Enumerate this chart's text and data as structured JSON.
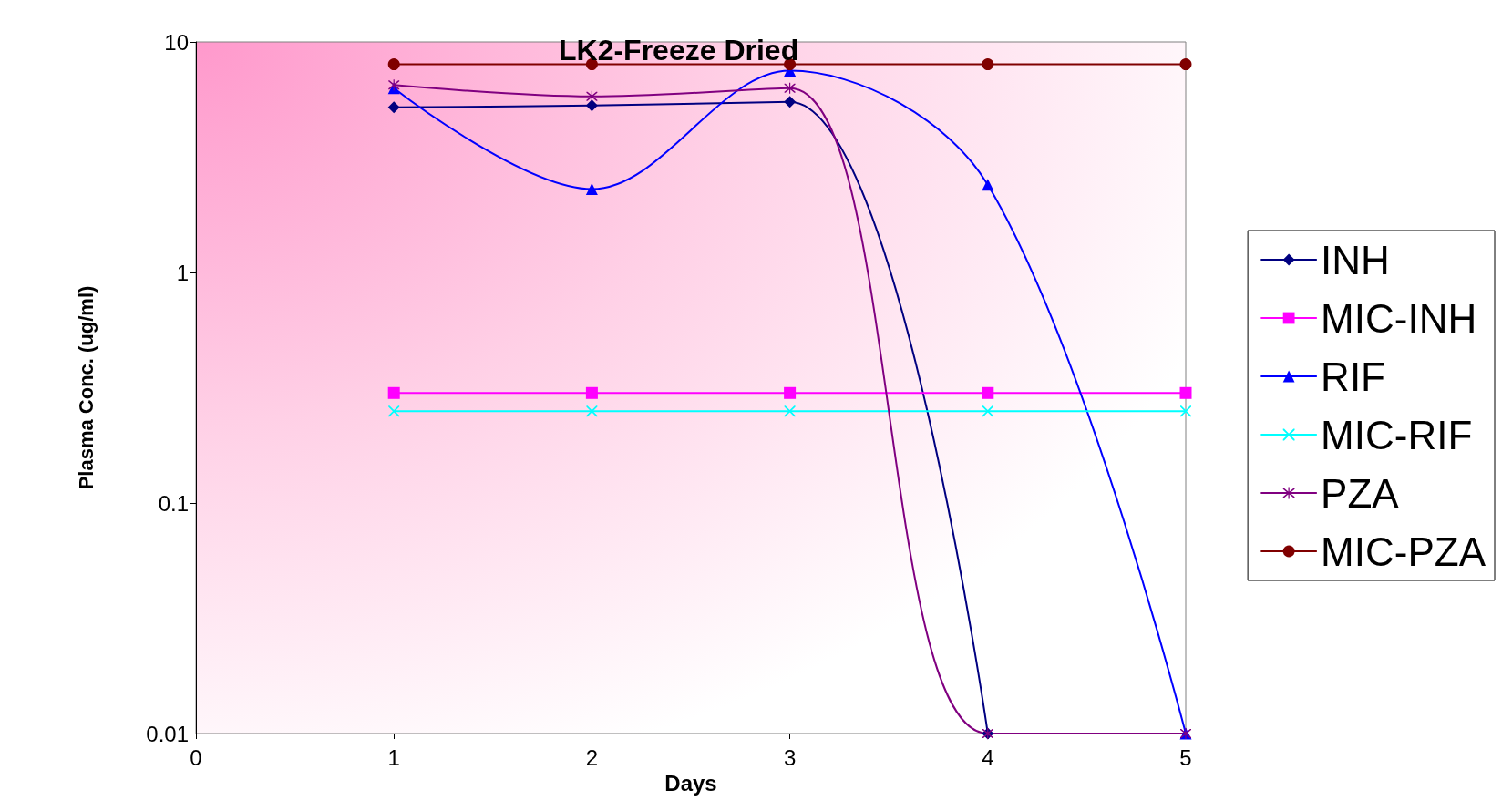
{
  "chart_data": {
    "type": "line",
    "title": "LK2-Freeze Dried",
    "xlabel": "Days",
    "ylabel": "Plasma Conc. (ug/ml)",
    "x": [
      1,
      2,
      3,
      4,
      5
    ],
    "series": [
      {
        "name": "INH",
        "color": "#000080",
        "marker": "diamond",
        "values": [
          5.2,
          5.3,
          5.5,
          0.01,
          null
        ]
      },
      {
        "name": "MIC-INH",
        "color": "#ff00ff",
        "marker": "square",
        "values": [
          0.3,
          0.3,
          0.3,
          0.3,
          0.3
        ]
      },
      {
        "name": "RIF",
        "color": "#0000ff",
        "marker": "triangle",
        "values": [
          6.3,
          2.3,
          7.5,
          2.4,
          0.01
        ]
      },
      {
        "name": "MIC-RIF",
        "color": "#00ffff",
        "marker": "cross",
        "values": [
          0.25,
          0.25,
          0.25,
          0.25,
          0.25
        ]
      },
      {
        "name": "PZA",
        "color": "#800080",
        "marker": "star",
        "values": [
          6.5,
          5.8,
          6.3,
          0.01,
          0.01
        ]
      },
      {
        "name": "MIC-PZA",
        "color": "#800000",
        "marker": "circle",
        "values": [
          8,
          8,
          8,
          8,
          8
        ]
      }
    ],
    "xlim": [
      0,
      5
    ],
    "xticks": [
      0,
      1,
      2,
      3,
      4,
      5
    ],
    "ylim": [
      0.01,
      10
    ],
    "yticks": [
      0.01,
      0.1,
      1,
      10
    ],
    "log": "y",
    "grid": false,
    "legend": "right",
    "line_style": "solid"
  }
}
